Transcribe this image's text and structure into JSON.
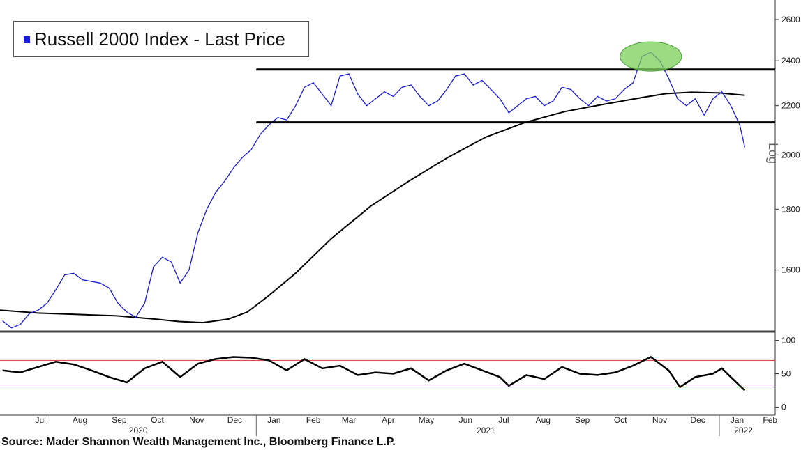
{
  "chart_data": [
    {
      "type": "line",
      "panel": "price",
      "legend": "Russell 2000 Index - Last Price",
      "y_axis_label": "Log",
      "yscale": "log",
      "ylim": [
        1420,
        2700
      ],
      "yticks": [
        1600,
        1800,
        2000,
        2200,
        2400,
        2600
      ],
      "xlim": [
        "2020-06-13",
        "2022-02-14"
      ],
      "colors": {
        "price": "#1a1adb",
        "moving_average": "#000000",
        "highlight": "#7ccf5a"
      },
      "series": [
        {
          "key": "price",
          "points": [
            [
              "2020-06-15",
              1450
            ],
            [
              "2020-06-22",
              1430
            ],
            [
              "2020-06-29",
              1440
            ],
            [
              "2020-07-06",
              1470
            ],
            [
              "2020-07-13",
              1480
            ],
            [
              "2020-07-20",
              1500
            ],
            [
              "2020-07-27",
              1540
            ],
            [
              "2020-08-03",
              1585
            ],
            [
              "2020-08-10",
              1590
            ],
            [
              "2020-08-17",
              1570
            ],
            [
              "2020-08-24",
              1565
            ],
            [
              "2020-08-31",
              1560
            ],
            [
              "2020-09-07",
              1545
            ],
            [
              "2020-09-14",
              1500
            ],
            [
              "2020-09-21",
              1475
            ],
            [
              "2020-09-28",
              1460
            ],
            [
              "2020-10-05",
              1500
            ],
            [
              "2020-10-12",
              1610
            ],
            [
              "2020-10-19",
              1640
            ],
            [
              "2020-10-26",
              1625
            ],
            [
              "2020-11-02",
              1560
            ],
            [
              "2020-11-09",
              1600
            ],
            [
              "2020-11-16",
              1720
            ],
            [
              "2020-11-23",
              1800
            ],
            [
              "2020-11-30",
              1860
            ],
            [
              "2020-12-07",
              1900
            ],
            [
              "2020-12-14",
              1950
            ],
            [
              "2020-12-21",
              1990
            ],
            [
              "2020-12-28",
              2020
            ],
            [
              "2021-01-04",
              2080
            ],
            [
              "2021-01-11",
              2120
            ],
            [
              "2021-01-18",
              2150
            ],
            [
              "2021-01-25",
              2140
            ],
            [
              "2021-02-01",
              2200
            ],
            [
              "2021-02-08",
              2280
            ],
            [
              "2021-02-15",
              2300
            ],
            [
              "2021-02-22",
              2250
            ],
            [
              "2021-03-01",
              2200
            ],
            [
              "2021-03-08",
              2330
            ],
            [
              "2021-03-15",
              2340
            ],
            [
              "2021-03-22",
              2250
            ],
            [
              "2021-03-29",
              2200
            ],
            [
              "2021-04-05",
              2230
            ],
            [
              "2021-04-12",
              2260
            ],
            [
              "2021-04-19",
              2240
            ],
            [
              "2021-04-26",
              2280
            ],
            [
              "2021-05-03",
              2290
            ],
            [
              "2021-05-10",
              2240
            ],
            [
              "2021-05-17",
              2200
            ],
            [
              "2021-05-24",
              2220
            ],
            [
              "2021-05-31",
              2270
            ],
            [
              "2021-06-07",
              2330
            ],
            [
              "2021-06-14",
              2340
            ],
            [
              "2021-06-21",
              2290
            ],
            [
              "2021-06-28",
              2310
            ],
            [
              "2021-07-05",
              2270
            ],
            [
              "2021-07-12",
              2230
            ],
            [
              "2021-07-19",
              2170
            ],
            [
              "2021-07-26",
              2200
            ],
            [
              "2021-08-02",
              2230
            ],
            [
              "2021-08-09",
              2240
            ],
            [
              "2021-08-16",
              2200
            ],
            [
              "2021-08-23",
              2220
            ],
            [
              "2021-08-30",
              2280
            ],
            [
              "2021-09-06",
              2270
            ],
            [
              "2021-09-13",
              2230
            ],
            [
              "2021-09-20",
              2200
            ],
            [
              "2021-09-27",
              2240
            ],
            [
              "2021-10-04",
              2220
            ],
            [
              "2021-10-11",
              2230
            ],
            [
              "2021-10-18",
              2270
            ],
            [
              "2021-10-25",
              2300
            ],
            [
              "2021-11-01",
              2420
            ],
            [
              "2021-11-08",
              2440
            ],
            [
              "2021-11-15",
              2400
            ],
            [
              "2021-11-22",
              2320
            ],
            [
              "2021-11-29",
              2230
            ],
            [
              "2021-12-06",
              2200
            ],
            [
              "2021-12-13",
              2230
            ],
            [
              "2021-12-20",
              2160
            ],
            [
              "2021-12-27",
              2230
            ],
            [
              "2022-01-03",
              2260
            ],
            [
              "2022-01-10",
              2200
            ],
            [
              "2022-01-17",
              2120
            ],
            [
              "2022-01-21",
              2030
            ]
          ]
        },
        {
          "key": "moving_average",
          "points": [
            [
              "2020-06-13",
              1480
            ],
            [
              "2020-07-13",
              1472
            ],
            [
              "2020-08-13",
              1468
            ],
            [
              "2020-09-13",
              1464
            ],
            [
              "2020-10-13",
              1455
            ],
            [
              "2020-11-01",
              1448
            ],
            [
              "2020-11-20",
              1445
            ],
            [
              "2020-12-10",
              1455
            ],
            [
              "2020-12-25",
              1475
            ],
            [
              "2021-01-10",
              1520
            ],
            [
              "2021-02-01",
              1590
            ],
            [
              "2021-03-01",
              1700
            ],
            [
              "2021-04-01",
              1810
            ],
            [
              "2021-05-01",
              1900
            ],
            [
              "2021-06-01",
              1990
            ],
            [
              "2021-07-01",
              2070
            ],
            [
              "2021-08-01",
              2130
            ],
            [
              "2021-09-01",
              2175
            ],
            [
              "2021-10-01",
              2205
            ],
            [
              "2021-11-01",
              2235
            ],
            [
              "2021-11-20",
              2252
            ],
            [
              "2021-12-10",
              2258
            ],
            [
              "2022-01-01",
              2255
            ],
            [
              "2022-01-21",
              2245
            ]
          ]
        }
      ],
      "horizontal_lines": [
        {
          "y": 2360,
          "x_start": "2021-01-01",
          "x_end": "2022-02-14"
        },
        {
          "y": 2130,
          "x_start": "2021-01-01",
          "x_end": "2022-02-14"
        }
      ],
      "highlight_ellipse": {
        "x": "2021-11-08",
        "y": 2420
      }
    },
    {
      "type": "line",
      "panel": "oscillator",
      "ylim": [
        -10,
        110
      ],
      "yticks": [
        0,
        50,
        100
      ],
      "reference_lines": [
        {
          "y": 70,
          "color": "#e03030"
        },
        {
          "y": 30,
          "color": "#2fb52f"
        }
      ],
      "series": [
        {
          "key": "oscillator",
          "color": "#000000",
          "points": [
            [
              "2020-06-15",
              55
            ],
            [
              "2020-06-29",
              52
            ],
            [
              "2020-07-13",
              60
            ],
            [
              "2020-07-27",
              68
            ],
            [
              "2020-08-10",
              64
            ],
            [
              "2020-08-24",
              55
            ],
            [
              "2020-09-07",
              45
            ],
            [
              "2020-09-21",
              37
            ],
            [
              "2020-10-05",
              58
            ],
            [
              "2020-10-19",
              68
            ],
            [
              "2020-11-02",
              45
            ],
            [
              "2020-11-16",
              65
            ],
            [
              "2020-11-30",
              72
            ],
            [
              "2020-12-14",
              75
            ],
            [
              "2020-12-28",
              74
            ],
            [
              "2021-01-11",
              70
            ],
            [
              "2021-01-25",
              55
            ],
            [
              "2021-02-08",
              72
            ],
            [
              "2021-02-22",
              58
            ],
            [
              "2021-03-08",
              62
            ],
            [
              "2021-03-22",
              48
            ],
            [
              "2021-04-05",
              52
            ],
            [
              "2021-04-19",
              50
            ],
            [
              "2021-05-03",
              58
            ],
            [
              "2021-05-17",
              40
            ],
            [
              "2021-05-31",
              55
            ],
            [
              "2021-06-14",
              65
            ],
            [
              "2021-06-28",
              55
            ],
            [
              "2021-07-12",
              45
            ],
            [
              "2021-07-19",
              32
            ],
            [
              "2021-08-02",
              48
            ],
            [
              "2021-08-16",
              42
            ],
            [
              "2021-08-30",
              60
            ],
            [
              "2021-09-13",
              50
            ],
            [
              "2021-09-27",
              48
            ],
            [
              "2021-10-11",
              52
            ],
            [
              "2021-10-25",
              62
            ],
            [
              "2021-11-08",
              75
            ],
            [
              "2021-11-22",
              55
            ],
            [
              "2021-12-01",
              30
            ],
            [
              "2021-12-13",
              45
            ],
            [
              "2021-12-27",
              50
            ],
            [
              "2022-01-03",
              58
            ],
            [
              "2022-01-10",
              45
            ],
            [
              "2022-01-21",
              25
            ]
          ]
        }
      ]
    }
  ],
  "x_axis": {
    "month_labels": [
      [
        "2020-07-15",
        "Jul"
      ],
      [
        "2020-08-15",
        "Aug"
      ],
      [
        "2020-09-15",
        "Sep"
      ],
      [
        "2020-10-15",
        "Oct"
      ],
      [
        "2020-11-15",
        "Nov"
      ],
      [
        "2020-12-15",
        "Dec"
      ],
      [
        "2021-01-15",
        "Jan"
      ],
      [
        "2021-02-15",
        "Feb"
      ],
      [
        "2021-03-15",
        "Mar"
      ],
      [
        "2021-04-15",
        "Apr"
      ],
      [
        "2021-05-15",
        "May"
      ],
      [
        "2021-06-15",
        "Jun"
      ],
      [
        "2021-07-15",
        "Jul"
      ],
      [
        "2021-08-15",
        "Aug"
      ],
      [
        "2021-09-15",
        "Sep"
      ],
      [
        "2021-10-15",
        "Oct"
      ],
      [
        "2021-11-15",
        "Nov"
      ],
      [
        "2021-12-15",
        "Dec"
      ],
      [
        "2022-01-15",
        "Jan"
      ],
      [
        "2022-02-10",
        "Feb"
      ]
    ],
    "year_labels": [
      [
        "2020-09-30",
        "2020"
      ],
      [
        "2021-07-01",
        "2021"
      ],
      [
        "2022-01-20",
        "2022"
      ]
    ]
  },
  "source_text": "Source: Mader Shannon Wealth Management Inc., Bloomberg Finance L.P."
}
